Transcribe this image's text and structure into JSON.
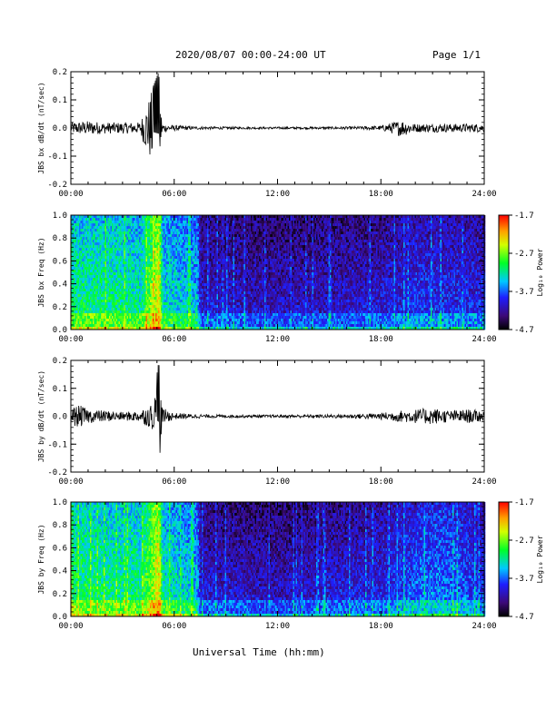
{
  "header": {
    "title": "2020/08/07  00:00-24:00 UT",
    "page_label": "Page 1/1"
  },
  "x_axis_label": "Universal Time (hh:mm)",
  "chart_data": [
    {
      "type": "line",
      "ylabel": "JBS bx dB/dt (nT/sec)",
      "xlim": [
        0,
        24
      ],
      "ylim": [
        -0.2,
        0.2
      ],
      "x_tick_labels": [
        "00:00",
        "06:00",
        "12:00",
        "18:00",
        "24:00"
      ],
      "y_tick_labels": [
        "0.2",
        "0.1",
        "0.0",
        "-0.1",
        "-0.2"
      ],
      "series": [
        {
          "x": [
            0,
            1,
            2,
            3,
            4,
            5.1,
            5.3,
            6,
            7,
            8,
            10,
            12,
            14,
            16,
            18,
            19.2,
            20,
            22,
            24
          ],
          "y_amplitude": [
            0.02,
            0.025,
            0.02,
            0.02,
            0.02,
            0.2,
            0.015,
            0.01,
            0.006,
            0.005,
            0.004,
            0.004,
            0.004,
            0.005,
            0.008,
            0.03,
            0.015,
            0.015,
            0.015
          ]
        }
      ]
    },
    {
      "type": "heatmap",
      "ylabel": "JBS bx Freq (Hz)",
      "xlim": [
        0,
        24
      ],
      "ylim": [
        0,
        1
      ],
      "x_tick_labels": [
        "00:00",
        "06:00",
        "12:00",
        "18:00",
        "24:00"
      ],
      "y_tick_labels": [
        "1.0",
        "0.8",
        "0.6",
        "0.4",
        "0.2",
        "0.0"
      ],
      "colorbar": {
        "label": "Log₁₀ Power",
        "range": [
          -4.7,
          -1.7
        ],
        "tick_labels": [
          "-1.7",
          "-2.7",
          "-3.7",
          "-4.7"
        ]
      },
      "power_profile": {
        "x": [
          0,
          2,
          4,
          5.1,
          5.3,
          7.3,
          7.5,
          12,
          18,
          20,
          24
        ],
        "level": [
          0.55,
          0.55,
          0.52,
          0.8,
          0.5,
          0.45,
          0.25,
          0.22,
          0.25,
          0.3,
          0.28
        ]
      }
    },
    {
      "type": "line",
      "ylabel": "JBS by dB/dt (nT/sec)",
      "xlim": [
        0,
        24
      ],
      "ylim": [
        -0.2,
        0.2
      ],
      "x_tick_labels": [
        "00:00",
        "06:00",
        "12:00",
        "18:00",
        "24:00"
      ],
      "y_tick_labels": [
        "0.2",
        "0.1",
        "0.0",
        "-0.1",
        "-0.2"
      ],
      "series": [
        {
          "x": [
            0,
            0.5,
            1,
            2,
            3,
            4,
            4.8,
            5.1,
            5.3,
            6,
            7,
            8,
            10,
            12,
            14,
            16,
            18,
            19,
            20,
            21,
            22,
            23,
            24
          ],
          "y_amplitude": [
            0.03,
            0.04,
            0.025,
            0.02,
            0.015,
            0.02,
            0.05,
            0.2,
            0.03,
            0.012,
            0.008,
            0.006,
            0.005,
            0.005,
            0.006,
            0.007,
            0.012,
            0.02,
            0.025,
            0.03,
            0.02,
            0.025,
            0.02
          ]
        }
      ]
    },
    {
      "type": "heatmap",
      "ylabel": "JBS by Freq (Hz)",
      "xlim": [
        0,
        24
      ],
      "ylim": [
        0,
        1
      ],
      "x_tick_labels": [
        "00:00",
        "06:00",
        "12:00",
        "18:00",
        "24:00"
      ],
      "y_tick_labels": [
        "1.0",
        "0.8",
        "0.6",
        "0.4",
        "0.2",
        "0.0"
      ],
      "colorbar": {
        "label": "Log₁₀ Power",
        "range": [
          -4.7,
          -1.7
        ],
        "tick_labels": [
          "-1.7",
          "-2.7",
          "-3.7",
          "-4.7"
        ]
      },
      "power_profile": {
        "x": [
          0,
          2,
          4,
          5.1,
          5.3,
          7.3,
          7.5,
          12,
          18,
          20,
          21.5,
          24
        ],
        "level": [
          0.58,
          0.55,
          0.55,
          0.82,
          0.52,
          0.45,
          0.25,
          0.22,
          0.28,
          0.35,
          0.38,
          0.3
        ]
      }
    }
  ]
}
